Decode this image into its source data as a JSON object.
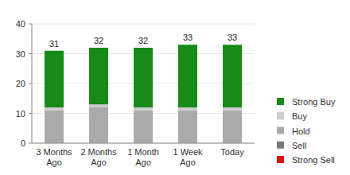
{
  "chart_data": {
    "type": "bar",
    "stacked": true,
    "grid": true,
    "legend": "right",
    "categories": [
      "3 Months Ago",
      "2 Months Ago",
      "1 Month Ago",
      "1 Week Ago",
      "Today"
    ],
    "series": [
      {
        "name": "Strong Sell",
        "color": "#dd1111",
        "values": [
          0,
          0,
          0,
          0,
          0
        ]
      },
      {
        "name": "Sell",
        "color": "#777777",
        "values": [
          0,
          0,
          0,
          0,
          0
        ]
      },
      {
        "name": "Hold",
        "color": "#aaaaaa",
        "values": [
          11,
          12,
          11,
          11,
          11
        ]
      },
      {
        "name": "Buy",
        "color": "#cccccc",
        "values": [
          1,
          1,
          1,
          1,
          1
        ]
      },
      {
        "name": "Strong Buy",
        "color": "#178a17",
        "values": [
          19,
          19,
          20,
          21,
          21
        ]
      }
    ],
    "totals": [
      31,
      32,
      32,
      33,
      33
    ],
    "ylim": [
      0,
      40
    ],
    "yticks": [
      0,
      10,
      20,
      30,
      40
    ]
  }
}
